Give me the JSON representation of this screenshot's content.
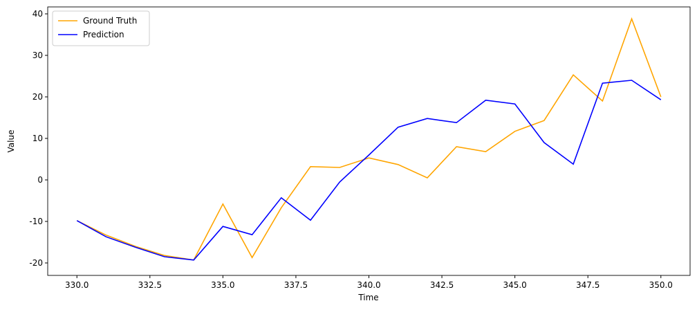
{
  "chart_data": {
    "type": "line",
    "xlabel": "Time",
    "ylabel": "Value",
    "x": [
      330,
      331,
      332,
      333,
      334,
      335,
      336,
      337,
      338,
      339,
      340,
      341,
      342,
      343,
      344,
      345,
      346,
      347,
      348,
      349,
      350
    ],
    "series": [
      {
        "name": "Ground Truth",
        "color": "#ffa500",
        "values": [
          -9.8,
          -13.3,
          -16,
          -18.2,
          -19.3,
          -5.8,
          -18.7,
          -6.7,
          3.2,
          3.0,
          5.3,
          3.7,
          0.5,
          8.0,
          6.8,
          11.7,
          14.3,
          25.3,
          19.0,
          38.8,
          20.0
        ]
      },
      {
        "name": "Prediction",
        "color": "#0000ff",
        "values": [
          -9.8,
          -13.7,
          -16.2,
          -18.5,
          -19.3,
          -11.2,
          -13.2,
          -4.3,
          -9.7,
          -0.5,
          6.0,
          12.7,
          14.8,
          13.8,
          19.2,
          18.3,
          9.0,
          3.8,
          23.3,
          24.0,
          19.3
        ]
      }
    ],
    "xlim": [
      329,
      351
    ],
    "ylim": [
      -23,
      41.67
    ],
    "xticks": [
      {
        "value": 330,
        "label": "330.0"
      },
      {
        "value": 332.5,
        "label": "332.5"
      },
      {
        "value": 335,
        "label": "335.0"
      },
      {
        "value": 337.5,
        "label": "337.5"
      },
      {
        "value": 340,
        "label": "340.0"
      },
      {
        "value": 342.5,
        "label": "342.5"
      },
      {
        "value": 345,
        "label": "345.0"
      },
      {
        "value": 347.5,
        "label": "347.5"
      },
      {
        "value": 350,
        "label": "350.0"
      }
    ],
    "yticks": [
      -20,
      -10,
      0,
      10,
      20,
      30,
      40
    ],
    "legend": "upper left",
    "grid": false
  }
}
